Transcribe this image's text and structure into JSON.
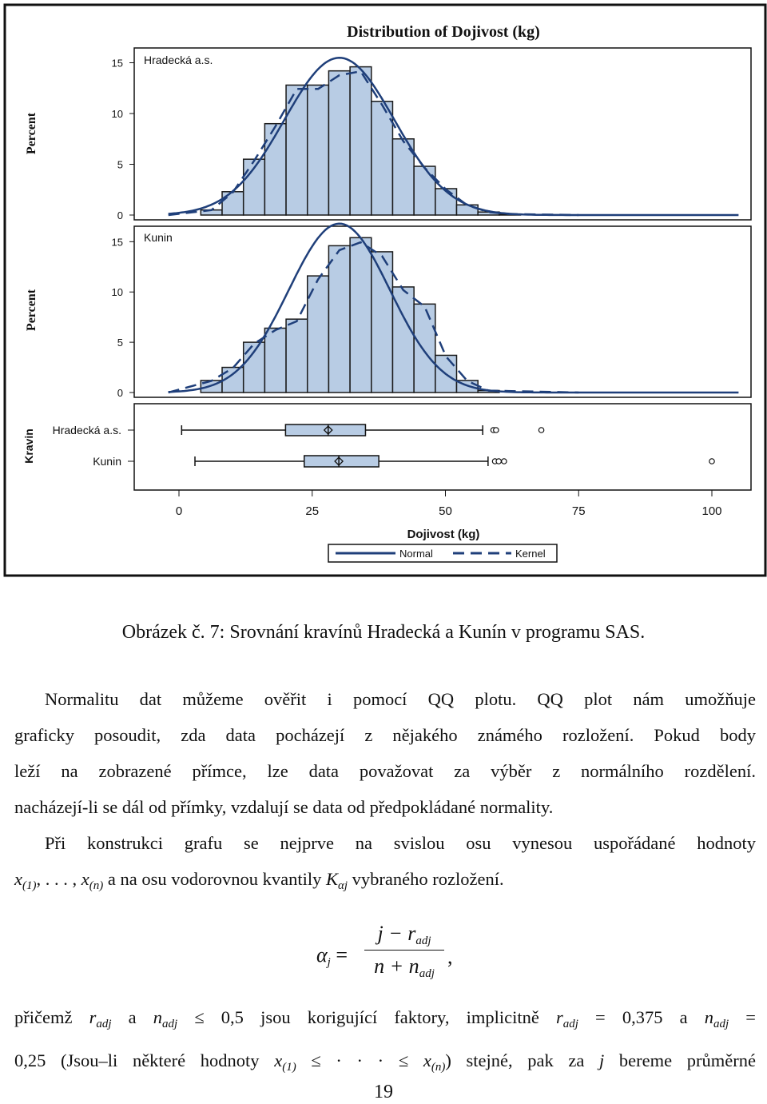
{
  "figure": {
    "title": "Distribution of Dojivost (kg)",
    "xlabel": "Dojivost (kg)",
    "ylabel_hist": "Percent",
    "ylabel_box": "Kravin",
    "x_ticks": [
      "0",
      "25",
      "50",
      "75",
      "100"
    ],
    "y_ticks": [
      "0",
      "5",
      "10",
      "15"
    ],
    "legend": {
      "normal": "Normal",
      "kernel": "Kernel"
    },
    "colors": {
      "bar_fill": "#b8cce4",
      "bar_stroke": "#1a1a1a",
      "line": "#1f3f7a"
    }
  },
  "chart_data": [
    {
      "type": "bar",
      "panel": "Hradecká a.s.",
      "bin_width": 4,
      "bin_centers": [
        4,
        8,
        12,
        16,
        20,
        24,
        28,
        32,
        36,
        40,
        44,
        48,
        52,
        56,
        60
      ],
      "values": [
        0.5,
        2.3,
        5.5,
        9.0,
        12.8,
        12.8,
        14.2,
        14.6,
        11.2,
        7.5,
        4.8,
        2.6,
        1.0,
        0.3,
        0.1
      ],
      "xlim": [
        -5,
        105
      ],
      "ylim": [
        0,
        16
      ],
      "normal_curve": {
        "mean": 28,
        "sd": 10.3
      },
      "kernel": "dashed"
    },
    {
      "type": "bar",
      "panel": "Kunin",
      "bin_width": 4,
      "bin_centers": [
        4,
        8,
        12,
        16,
        20,
        24,
        28,
        32,
        36,
        40,
        44,
        48,
        52,
        56
      ],
      "values": [
        1.2,
        2.5,
        5.0,
        6.4,
        7.3,
        11.6,
        14.6,
        15.4,
        14.0,
        10.5,
        8.8,
        3.7,
        1.2,
        0.2
      ],
      "xlim": [
        -5,
        105
      ],
      "ylim": [
        0,
        16
      ],
      "normal_curve": {
        "mean": 28,
        "sd": 9.5
      },
      "kernel": "dashed"
    },
    {
      "type": "box",
      "categories": [
        "Hradecká a.s.",
        "Kunin"
      ],
      "boxes": [
        {
          "name": "Hradecká a.s.",
          "whisker_low": 0.5,
          "q1": 20,
          "median": 28,
          "mean": 28,
          "q3": 35,
          "whisker_high": 57,
          "outliers": [
            59,
            59.5,
            68
          ]
        },
        {
          "name": "Kunin",
          "whisker_low": 3,
          "q1": 23.5,
          "median": 30,
          "mean": 30,
          "q3": 37.5,
          "whisker_high": 58,
          "outliers": [
            59.3,
            60,
            61,
            100
          ]
        }
      ]
    }
  ],
  "caption": "Obrázek č. 7: Srovnání kravínů Hradecká a Kunín v programu SAS.",
  "para1": {
    "l1": "Normalitu dat můžeme ověřit i pomocí QQ plotu. QQ plot nám umožňuje",
    "l2": "graficky posoudit, zda data pocházejí z nějakého známého rozložení. Pokud body",
    "l3": "leží na zobrazené přímce, lze data považovat za výběr z normálního rozdělení.",
    "l4": "nacházejí-li se dál od přímky, vzdalují se data od předpokládané normality."
  },
  "para2": {
    "l1": "Při konstrukci grafu se nejprve na svislou osu vynesou uspořádané hodnoty",
    "l2_math_a": "x",
    "l2_sub_a": "(1)",
    "l2_mid": ", . . . , ",
    "l2_math_b": "x",
    "l2_sub_b": "(n)",
    "l2_text": " a na osu vodorovnou kvantily ",
    "l2_math_c": "K",
    "l2_sub_c": "αj",
    "l2_end": " vybraného rozložení."
  },
  "formula": {
    "lhs": "α",
    "lhs_sub": "j",
    "eq": " =",
    "num": "j − r",
    "num_sub": "adj",
    "den": "n + n",
    "den_sub": "adj",
    "tail": ","
  },
  "para3": {
    "l1_a": "přičemž ",
    "l1_r": "r",
    "l1_r_sub": "adj",
    "l1_b": " a ",
    "l1_n": "n",
    "l1_n_sub": "adj",
    "l1_c": " ≤ 0,5 jsou korigující faktory, implicitně ",
    "l1_r2": "r",
    "l1_r2_sub": "adj",
    "l1_d": " = 0,375 a ",
    "l1_n2": "n",
    "l1_n2_sub": "adj",
    "l1_e": " =",
    "l2_a": "0,25 (Jsou–li některé hodnoty ",
    "l2_x1": "x",
    "l2_x1_sub": "(1)",
    "l2_b": " ≤ · · · ≤ ",
    "l2_xn": "x",
    "l2_xn_sub": "(n)",
    "l2_c": ") stejné, pak za ",
    "l2_j": "j",
    "l2_d": " bereme průměrné"
  },
  "page_number": "19"
}
